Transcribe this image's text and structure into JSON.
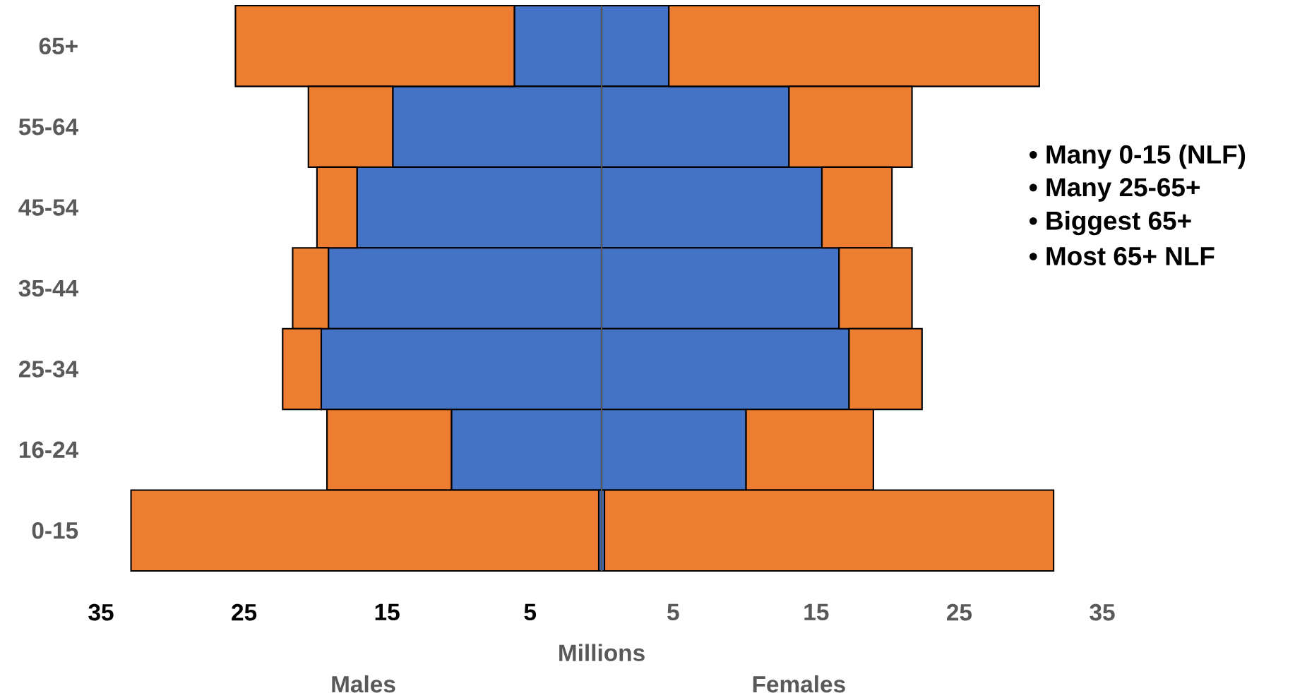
{
  "chart_data": {
    "type": "bar",
    "orientation": "horizontal",
    "stacked": true,
    "categories": [
      "65+",
      "55-64",
      "45-54",
      "35-44",
      "25-34",
      "16-24",
      "0-15"
    ],
    "series": [
      {
        "color": "#4472c4",
        "values": [
          -6.1,
          -14.6,
          -17.1,
          -19.1,
          -19.6,
          -10.5,
          -0.2
        ]
      },
      {
        "color": "#ed7d31",
        "values": [
          -19.5,
          -5.9,
          -2.8,
          -2.5,
          -2.7,
          -8.7,
          -32.7
        ]
      },
      {
        "color": "#4472c4",
        "values": [
          4.7,
          13.1,
          15.4,
          16.6,
          17.3,
          10.1,
          0.2
        ]
      },
      {
        "color": "#ed7d31",
        "values": [
          25.9,
          8.6,
          4.9,
          5.1,
          5.1,
          8.9,
          31.4
        ]
      }
    ],
    "xlim": [
      -35,
      35
    ],
    "xticks": [
      {
        "value": -35,
        "label": "35"
      },
      {
        "value": -25,
        "label": "25"
      },
      {
        "value": -15,
        "label": "15"
      },
      {
        "value": -5,
        "label": "5"
      },
      5,
      15,
      25,
      35
    ],
    "xlabel": "Millions",
    "annotations": [
      "Males",
      "Females",
      "• Many 0-15 (NLF)",
      "• Many 25-65+",
      "• Biggest 65+",
      "• Most 65+ NLF"
    ]
  }
}
